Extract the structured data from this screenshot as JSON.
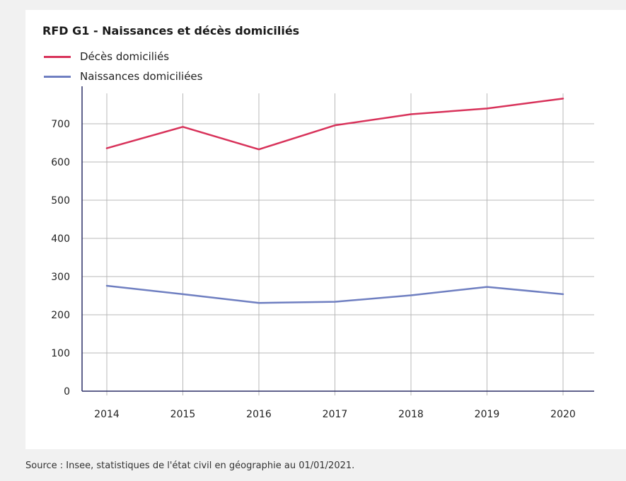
{
  "chart_data": {
    "type": "line",
    "title": "RFD G1 - Naissances et décès domiciliés",
    "xlabel": "",
    "ylabel": "",
    "categories": [
      "2014",
      "2015",
      "2016",
      "2017",
      "2018",
      "2019",
      "2020"
    ],
    "yticks": [
      "0",
      "100",
      "200",
      "300",
      "400",
      "500",
      "600",
      "700"
    ],
    "ylim": [
      0,
      750
    ],
    "grid": true,
    "legend_position": "top-left",
    "series": [
      {
        "name": "Décès domiciliés",
        "color": "#d8325a",
        "values": [
          636,
          692,
          633,
          696,
          725,
          740,
          766
        ]
      },
      {
        "name": "Naissances domiciliées",
        "color": "#6f7fc1",
        "values": [
          276,
          254,
          231,
          234,
          251,
          273,
          254
        ]
      }
    ]
  },
  "source": "Source : Insee, statistiques de l'état civil en géographie au 01/01/2021."
}
